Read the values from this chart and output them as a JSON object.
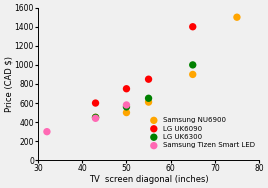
{
  "xlabel": "TV  screen diagonal (inches)",
  "ylabel": "Price (CAD $)",
  "xlim": [
    30,
    80
  ],
  "ylim": [
    0,
    1600
  ],
  "xticks": [
    30,
    40,
    50,
    60,
    70,
    80
  ],
  "yticks": [
    0,
    200,
    400,
    600,
    800,
    1000,
    1200,
    1400,
    1600
  ],
  "series": [
    {
      "label": "Samsung NU6900",
      "color": "#FFA500",
      "x": [
        43,
        50,
        55,
        65,
        75
      ],
      "y": [
        450,
        500,
        610,
        900,
        1500
      ]
    },
    {
      "label": "LG UK6090",
      "color": "#FF0000",
      "x": [
        43,
        50,
        55,
        65
      ],
      "y": [
        600,
        750,
        850,
        1400
      ]
    },
    {
      "label": "LG UK6300",
      "color": "#008000",
      "x": [
        43,
        50,
        55,
        65
      ],
      "y": [
        450,
        560,
        650,
        1000
      ]
    },
    {
      "label": "Samsung Tizen Smart LED",
      "color": "#FF69B4",
      "x": [
        32,
        43,
        50
      ],
      "y": [
        300,
        440,
        580
      ]
    }
  ],
  "background_color": "#f0f0f0",
  "title_fontsize": 6.0,
  "axis_label_fontsize": 6.0,
  "tick_fontsize": 5.5,
  "legend_fontsize": 5.0,
  "marker_size": 28
}
